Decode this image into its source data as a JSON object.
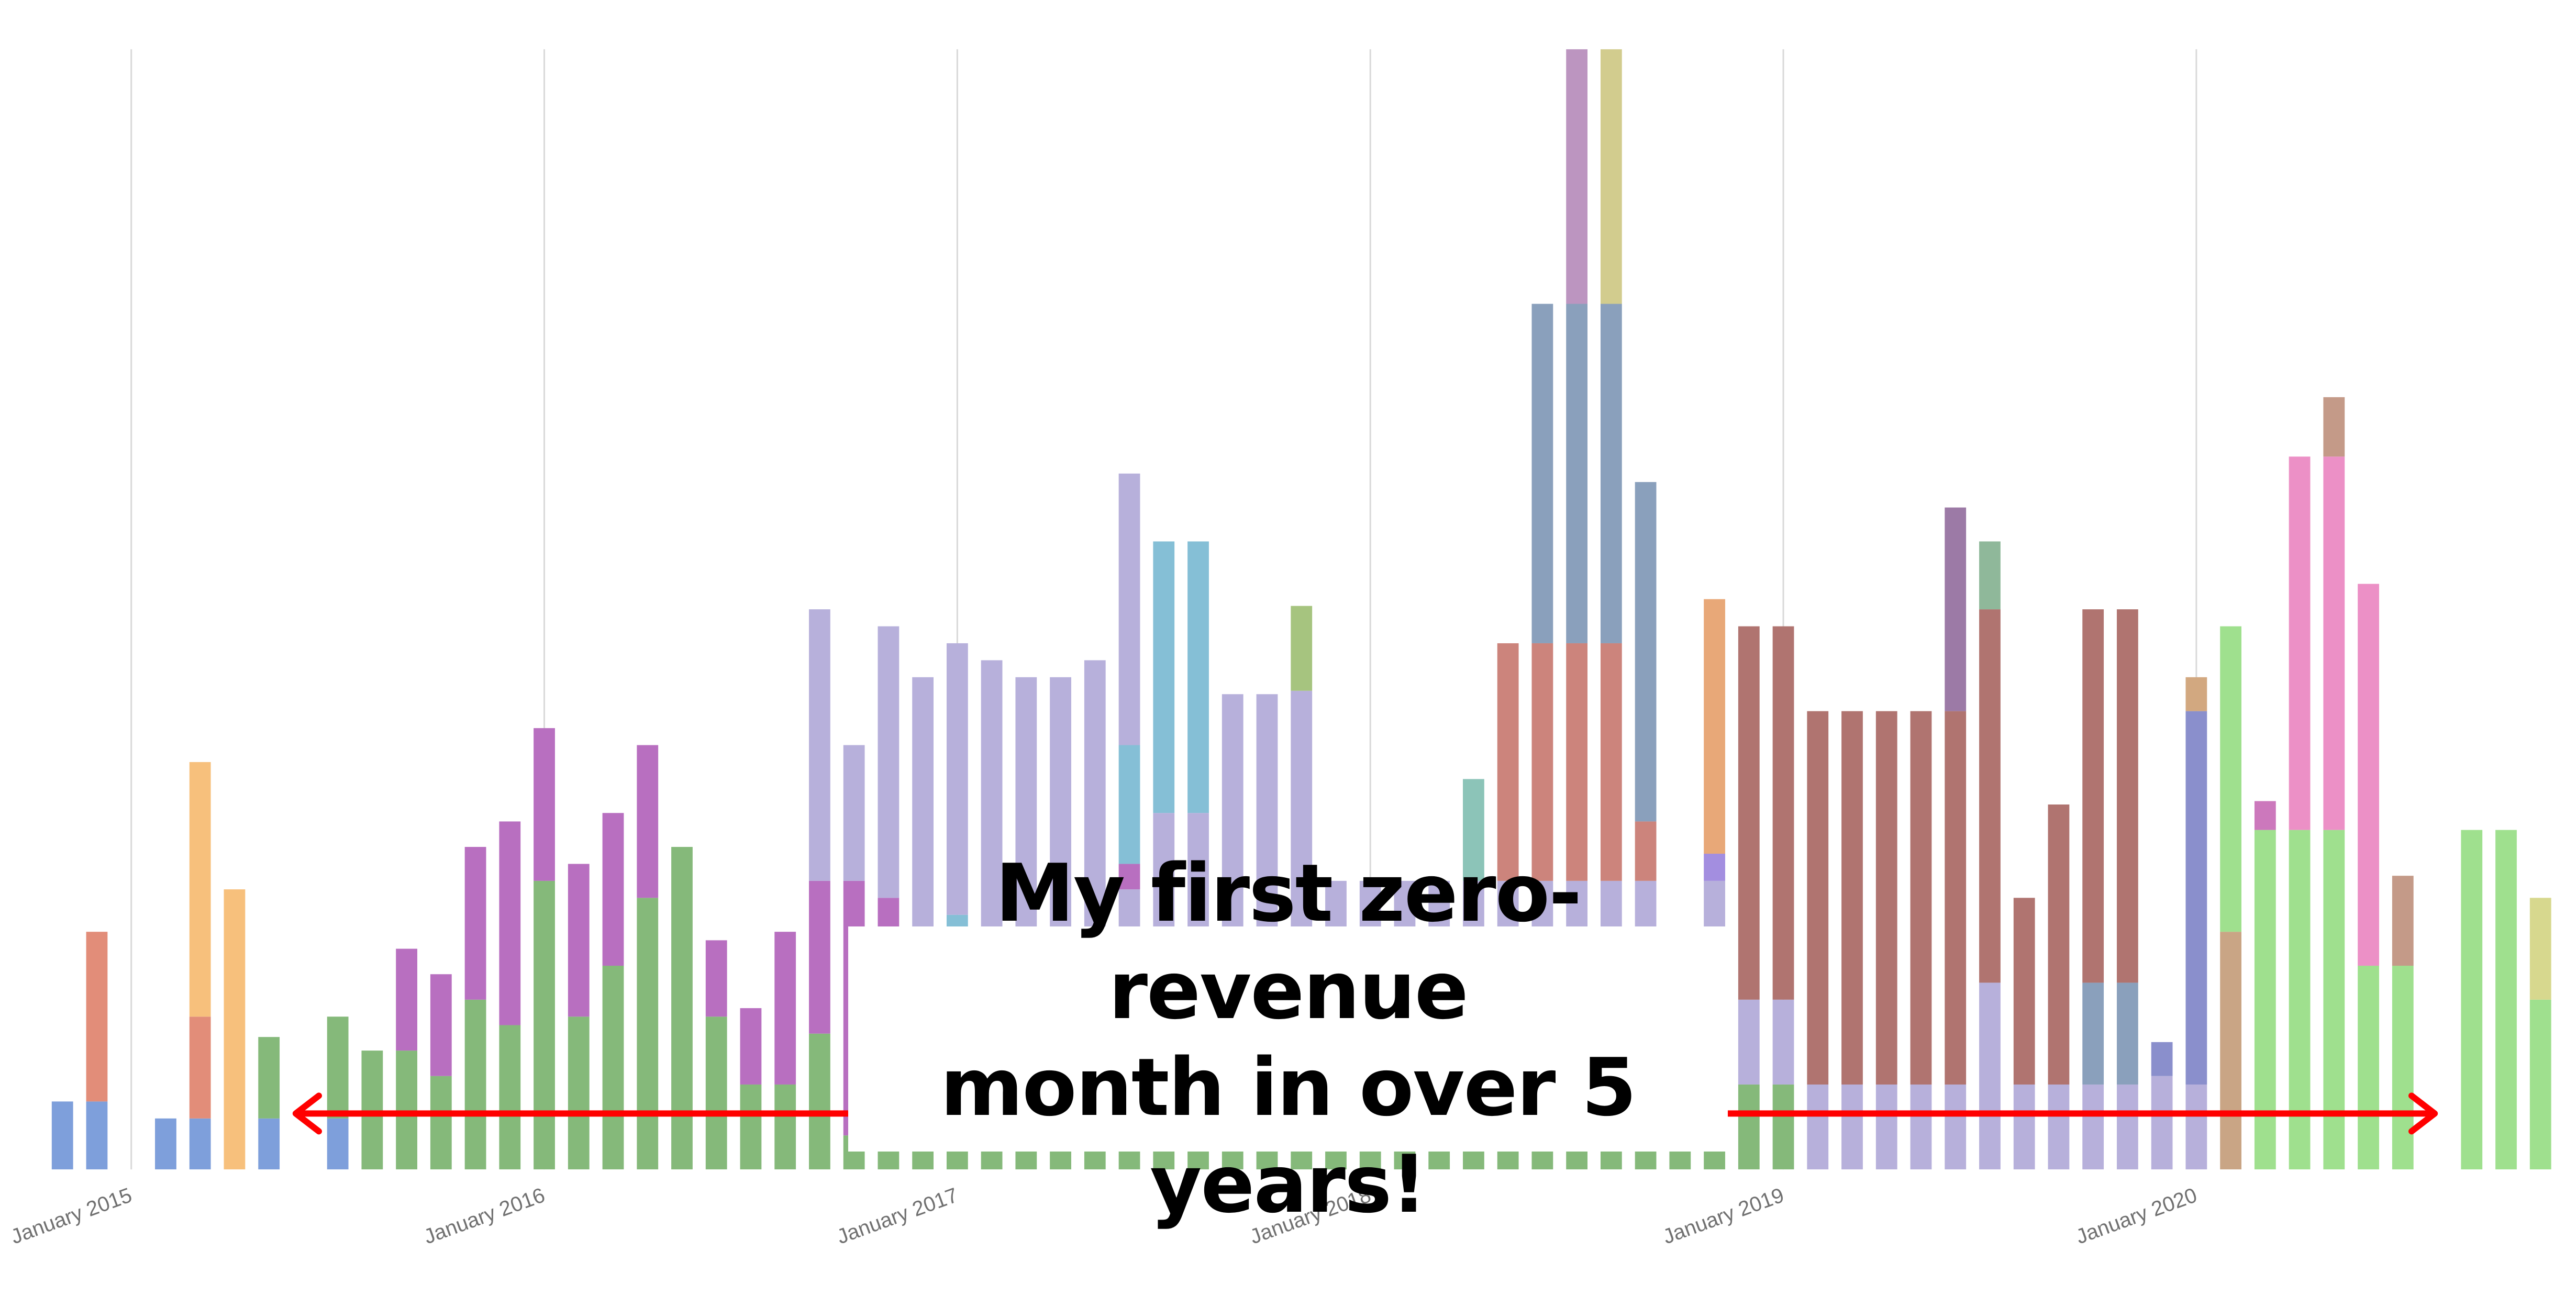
{
  "chart_data": {
    "type": "bar",
    "stacked": true,
    "title": "",
    "xlabel": "",
    "ylabel": "",
    "grid": "vertical lines at year ticks",
    "legend": "none",
    "ylim": [
      0,
      66
    ],
    "x_ticks": [
      "January 2015",
      "January 2016",
      "January 2017",
      "January 2018",
      "January 2019",
      "January 2020"
    ],
    "annotation": {
      "lines": [
        "My first zero-revenue",
        "month in over 5 years!"
      ],
      "arrow": "double-headed horizontal arrow spanning the chart"
    },
    "colors": {
      "red_arrow": "#ff0000",
      "grid": "#d9d9d9"
    },
    "months": [
      {
        "x": "2014-11",
        "segments": [
          {
            "v": 4,
            "c": "#7e9fdb"
          }
        ]
      },
      {
        "x": "2014-12",
        "segments": [
          {
            "v": 4,
            "c": "#7e9fdb"
          },
          {
            "v": 10,
            "c": "#e28d79"
          }
        ]
      },
      {
        "x": "2015-01",
        "segments": []
      },
      {
        "x": "2015-02",
        "segments": [
          {
            "v": 3,
            "c": "#7e9fdb"
          }
        ]
      },
      {
        "x": "2015-03",
        "segments": [
          {
            "v": 3,
            "c": "#7e9fdb"
          },
          {
            "v": 6,
            "c": "#e28d79"
          },
          {
            "v": 15,
            "c": "#f7c07c"
          }
        ]
      },
      {
        "x": "2015-04",
        "segments": [
          {
            "v": 16.5,
            "c": "#f7c07c"
          }
        ]
      },
      {
        "x": "2015-05",
        "segments": [
          {
            "v": 3,
            "c": "#7e9fdb"
          },
          {
            "v": 4.8,
            "c": "#85b97a"
          }
        ]
      },
      {
        "x": "2015-06",
        "segments": []
      },
      {
        "x": "2015-07",
        "segments": [
          {
            "v": 3,
            "c": "#7e9fdb"
          },
          {
            "v": 6,
            "c": "#85b97a"
          }
        ]
      },
      {
        "x": "2015-08",
        "segments": [
          {
            "v": 7,
            "c": "#85b97a"
          }
        ]
      },
      {
        "x": "2015-09",
        "segments": [
          {
            "v": 7,
            "c": "#85b97a"
          },
          {
            "v": 6,
            "c": "#b86fc0"
          }
        ]
      },
      {
        "x": "2015-10",
        "segments": [
          {
            "v": 5.5,
            "c": "#85b97a"
          },
          {
            "v": 6,
            "c": "#b86fc0"
          }
        ]
      },
      {
        "x": "2015-11",
        "segments": [
          {
            "v": 10,
            "c": "#85b97a"
          },
          {
            "v": 9,
            "c": "#b86fc0"
          }
        ]
      },
      {
        "x": "2015-12",
        "segments": [
          {
            "v": 8.5,
            "c": "#85b97a"
          },
          {
            "v": 12,
            "c": "#b86fc0"
          }
        ]
      },
      {
        "x": "2016-01",
        "segments": [
          {
            "v": 17,
            "c": "#85b97a"
          },
          {
            "v": 9,
            "c": "#b86fc0"
          }
        ]
      },
      {
        "x": "2016-02",
        "segments": [
          {
            "v": 9,
            "c": "#85b97a"
          },
          {
            "v": 9,
            "c": "#b86fc0"
          }
        ]
      },
      {
        "x": "2016-03",
        "segments": [
          {
            "v": 12,
            "c": "#85b97a"
          },
          {
            "v": 9,
            "c": "#b86fc0"
          }
        ]
      },
      {
        "x": "2016-04",
        "segments": [
          {
            "v": 16,
            "c": "#85b97a"
          },
          {
            "v": 9,
            "c": "#b86fc0"
          }
        ]
      },
      {
        "x": "2016-05",
        "segments": [
          {
            "v": 19,
            "c": "#85b97a"
          }
        ]
      },
      {
        "x": "2016-06",
        "segments": [
          {
            "v": 9,
            "c": "#85b97a"
          },
          {
            "v": 4.5,
            "c": "#b86fc0"
          }
        ]
      },
      {
        "x": "2016-07",
        "segments": [
          {
            "v": 5,
            "c": "#85b97a"
          },
          {
            "v": 4.5,
            "c": "#b86fc0"
          }
        ]
      },
      {
        "x": "2016-08",
        "segments": [
          {
            "v": 5,
            "c": "#85b97a"
          },
          {
            "v": 9,
            "c": "#b86fc0"
          }
        ]
      },
      {
        "x": "2016-09",
        "segments": [
          {
            "v": 8,
            "c": "#85b97a"
          },
          {
            "v": 9,
            "c": "#b86fc0"
          },
          {
            "v": 16,
            "c": "#b7b0db"
          }
        ]
      },
      {
        "x": "2016-10",
        "segments": [
          {
            "v": 2,
            "c": "#85b97a"
          },
          {
            "v": 15,
            "c": "#b86fc0"
          },
          {
            "v": 8,
            "c": "#b7b0db"
          }
        ]
      },
      {
        "x": "2016-11",
        "segments": [
          {
            "v": 2,
            "c": "#85b97a"
          },
          {
            "v": 14,
            "c": "#b86fc0"
          },
          {
            "v": 16,
            "c": "#b7b0db"
          }
        ]
      },
      {
        "x": "2016-12",
        "segments": [
          {
            "v": 2,
            "c": "#85b97a"
          },
          {
            "v": 27,
            "c": "#b7b0db"
          }
        ]
      },
      {
        "x": "2017-01",
        "segments": [
          {
            "v": 2,
            "c": "#85b97a"
          },
          {
            "v": 13,
            "c": "#85bfd6"
          },
          {
            "v": 16,
            "c": "#b7b0db"
          }
        ]
      },
      {
        "x": "2017-02",
        "segments": [
          {
            "v": 2,
            "c": "#85b97a"
          },
          {
            "v": 28,
            "c": "#b7b0db"
          }
        ]
      },
      {
        "x": "2017-03",
        "segments": [
          {
            "v": 2,
            "c": "#85b97a"
          },
          {
            "v": 27,
            "c": "#b7b0db"
          }
        ]
      },
      {
        "x": "2017-04",
        "segments": [
          {
            "v": 2,
            "c": "#85b97a"
          },
          {
            "v": 27,
            "c": "#b7b0db"
          }
        ]
      },
      {
        "x": "2017-05",
        "segments": [
          {
            "v": 2,
            "c": "#85b97a"
          },
          {
            "v": 28,
            "c": "#b7b0db"
          }
        ]
      },
      {
        "x": "2017-06",
        "segments": [
          {
            "v": 2,
            "c": "#85b97a"
          },
          {
            "v": 14.5,
            "c": "#b7b0db"
          },
          {
            "v": 1.5,
            "c": "#b86fc0"
          },
          {
            "v": 7,
            "c": "#85bfd6"
          },
          {
            "v": 16,
            "c": "#b7b0db"
          }
        ]
      },
      {
        "x": "2017-07",
        "segments": [
          {
            "v": 2,
            "c": "#85b97a"
          },
          {
            "v": 19,
            "c": "#b7b0db"
          },
          {
            "v": 16,
            "c": "#85bfd6"
          }
        ]
      },
      {
        "x": "2017-08",
        "segments": [
          {
            "v": 2,
            "c": "#85b97a"
          },
          {
            "v": 19,
            "c": "#b7b0db"
          },
          {
            "v": 16,
            "c": "#85bfd6"
          }
        ]
      },
      {
        "x": "2017-09",
        "segments": [
          {
            "v": 2,
            "c": "#85b97a"
          },
          {
            "v": 26,
            "c": "#b7b0db"
          }
        ]
      },
      {
        "x": "2017-10",
        "segments": [
          {
            "v": 2,
            "c": "#85b97a"
          },
          {
            "v": 26,
            "c": "#b7b0db"
          }
        ]
      },
      {
        "x": "2017-11",
        "segments": [
          {
            "v": 2,
            "c": "#85b97a"
          },
          {
            "v": 26.2,
            "c": "#b7b0db"
          },
          {
            "v": 5,
            "c": "#a6c47f"
          }
        ]
      },
      {
        "x": "2017-12",
        "segments": [
          {
            "v": 2,
            "c": "#85b97a"
          },
          {
            "v": 15,
            "c": "#b7b0db"
          }
        ]
      },
      {
        "x": "2018-01",
        "segments": [
          {
            "v": 2,
            "c": "#85b97a"
          },
          {
            "v": 15,
            "c": "#b7b0db"
          }
        ]
      },
      {
        "x": "2018-02",
        "segments": [
          {
            "v": 2,
            "c": "#85b97a"
          },
          {
            "v": 15,
            "c": "#b7b0db"
          }
        ]
      },
      {
        "x": "2018-03",
        "segments": [
          {
            "v": 2,
            "c": "#85b97a"
          },
          {
            "v": 15,
            "c": "#b7b0db"
          }
        ]
      },
      {
        "x": "2018-04",
        "segments": [
          {
            "v": 2,
            "c": "#85b97a"
          },
          {
            "v": 15,
            "c": "#b7b0db"
          },
          {
            "v": 6,
            "c": "#8cc4b8"
          }
        ]
      },
      {
        "x": "2018-05",
        "segments": [
          {
            "v": 2,
            "c": "#85b97a"
          },
          {
            "v": 15,
            "c": "#b7b0db"
          },
          {
            "v": 14,
            "c": "#cc847c"
          }
        ]
      },
      {
        "x": "2018-06",
        "segments": [
          {
            "v": 2,
            "c": "#85b97a"
          },
          {
            "v": 15,
            "c": "#b7b0db"
          },
          {
            "v": 14,
            "c": "#cc847c"
          },
          {
            "v": 20,
            "c": "#8aa0bc"
          }
        ]
      },
      {
        "x": "2018-07",
        "segments": [
          {
            "v": 2,
            "c": "#85b97a"
          },
          {
            "v": 15,
            "c": "#b7b0db"
          },
          {
            "v": 14,
            "c": "#cc847c"
          },
          {
            "v": 20,
            "c": "#8aa0bc"
          },
          {
            "v": 15,
            "c": "#bc95c0"
          }
        ]
      },
      {
        "x": "2018-08",
        "segments": [
          {
            "v": 2,
            "c": "#85b97a"
          },
          {
            "v": 15,
            "c": "#b7b0db"
          },
          {
            "v": 14,
            "c": "#cc847c"
          },
          {
            "v": 20,
            "c": "#8aa0bc"
          },
          {
            "v": 15,
            "c": "#d2cc8e"
          }
        ]
      },
      {
        "x": "2018-09",
        "segments": [
          {
            "v": 2,
            "c": "#85b97a"
          },
          {
            "v": 15,
            "c": "#b7b0db"
          },
          {
            "v": 3.5,
            "c": "#cc847c"
          },
          {
            "v": 20,
            "c": "#8aa0bc"
          }
        ]
      },
      {
        "x": "2018-10",
        "segments": [
          {
            "v": 2,
            "c": "#85b97a"
          },
          {
            "v": 1.5,
            "c": "#b7b0db"
          },
          {
            "v": 0.7,
            "c": "#8aa0bc"
          }
        ]
      },
      {
        "x": "2018-11",
        "segments": [
          {
            "v": 2,
            "c": "#85b97a"
          },
          {
            "v": 15,
            "c": "#b7b0db"
          },
          {
            "v": 1.6,
            "c": "#a38ee0"
          },
          {
            "v": 15,
            "c": "#e8a878"
          }
        ]
      },
      {
        "x": "2018-12",
        "segments": [
          {
            "v": 5,
            "c": "#85b97a"
          },
          {
            "v": 5,
            "c": "#b7b0db"
          },
          {
            "v": 22,
            "c": "#b07470"
          }
        ]
      },
      {
        "x": "2019-01",
        "segments": [
          {
            "v": 5,
            "c": "#85b97a"
          },
          {
            "v": 5,
            "c": "#b7b0db"
          },
          {
            "v": 22,
            "c": "#b07470"
          }
        ]
      },
      {
        "x": "2019-02",
        "segments": [
          {
            "v": 5,
            "c": "#b7b0db"
          },
          {
            "v": 22,
            "c": "#b07470"
          }
        ]
      },
      {
        "x": "2019-03",
        "segments": [
          {
            "v": 5,
            "c": "#b7b0db"
          },
          {
            "v": 22,
            "c": "#b07470"
          }
        ]
      },
      {
        "x": "2019-04",
        "segments": [
          {
            "v": 5,
            "c": "#b7b0db"
          },
          {
            "v": 22,
            "c": "#b07470"
          }
        ]
      },
      {
        "x": "2019-05",
        "segments": [
          {
            "v": 5,
            "c": "#b7b0db"
          },
          {
            "v": 22,
            "c": "#b07470"
          }
        ]
      },
      {
        "x": "2019-06",
        "segments": [
          {
            "v": 5,
            "c": "#b7b0db"
          },
          {
            "v": 22,
            "c": "#b07470"
          },
          {
            "v": 12,
            "c": "#9c7aa6"
          }
        ]
      },
      {
        "x": "2019-07",
        "segments": [
          {
            "v": 11,
            "c": "#b7b0db"
          },
          {
            "v": 22,
            "c": "#b07470"
          },
          {
            "v": 4,
            "c": "#8fb89a"
          }
        ]
      },
      {
        "x": "2019-08",
        "segments": [
          {
            "v": 5,
            "c": "#b7b0db"
          },
          {
            "v": 11,
            "c": "#b07470"
          }
        ]
      },
      {
        "x": "2019-09",
        "segments": [
          {
            "v": 5,
            "c": "#b7b0db"
          },
          {
            "v": 16.5,
            "c": "#b07470"
          }
        ]
      },
      {
        "x": "2019-10",
        "segments": [
          {
            "v": 5,
            "c": "#b7b0db"
          },
          {
            "v": 6,
            "c": "#8aa0bc"
          },
          {
            "v": 22,
            "c": "#b07470"
          }
        ]
      },
      {
        "x": "2019-11",
        "segments": [
          {
            "v": 5,
            "c": "#b7b0db"
          },
          {
            "v": 6,
            "c": "#8aa0bc"
          },
          {
            "v": 22,
            "c": "#b07470"
          }
        ]
      },
      {
        "x": "2019-12",
        "segments": [
          {
            "v": 5.5,
            "c": "#b7b0db"
          },
          {
            "v": 2,
            "c": "#8a8fcc"
          }
        ]
      },
      {
        "x": "2020-01",
        "segments": [
          {
            "v": 5,
            "c": "#b7b0db"
          },
          {
            "v": 22,
            "c": "#8a8fcc"
          },
          {
            "v": 2,
            "c": "#d2a880"
          }
        ]
      },
      {
        "x": "2020-02",
        "segments": [
          {
            "v": 14,
            "c": "#c9a585"
          },
          {
            "v": 18,
            "c": "#9fe08e"
          }
        ]
      },
      {
        "x": "2020-03",
        "segments": [
          {
            "v": 20,
            "c": "#9fe08e"
          },
          {
            "v": 1.7,
            "c": "#cc78bc"
          }
        ]
      },
      {
        "x": "2020-04",
        "segments": [
          {
            "v": 20,
            "c": "#9fe08e"
          },
          {
            "v": 22,
            "c": "#ec90c6"
          }
        ]
      },
      {
        "x": "2020-05",
        "segments": [
          {
            "v": 20,
            "c": "#9fe08e"
          },
          {
            "v": 22,
            "c": "#ec90c6"
          },
          {
            "v": 3.5,
            "c": "#c49a88"
          }
        ]
      },
      {
        "x": "2020-06",
        "segments": [
          {
            "v": 12,
            "c": "#9fe08e"
          },
          {
            "v": 22.5,
            "c": "#ec90c6"
          }
        ]
      },
      {
        "x": "2020-07",
        "segments": [
          {
            "v": 12,
            "c": "#9fe08e"
          },
          {
            "v": 5.3,
            "c": "#c49a88"
          }
        ]
      },
      {
        "x": "2020-08",
        "segments": []
      },
      {
        "x": "2020-09",
        "segments": [
          {
            "v": 20,
            "c": "#9fe08e"
          }
        ]
      },
      {
        "x": "2020-10",
        "segments": [
          {
            "v": 20,
            "c": "#9fe08e"
          }
        ]
      },
      {
        "x": "2020-11",
        "segments": [
          {
            "v": 10,
            "c": "#9fe08e"
          },
          {
            "v": 6,
            "c": "#d7d88e"
          }
        ]
      }
    ]
  }
}
